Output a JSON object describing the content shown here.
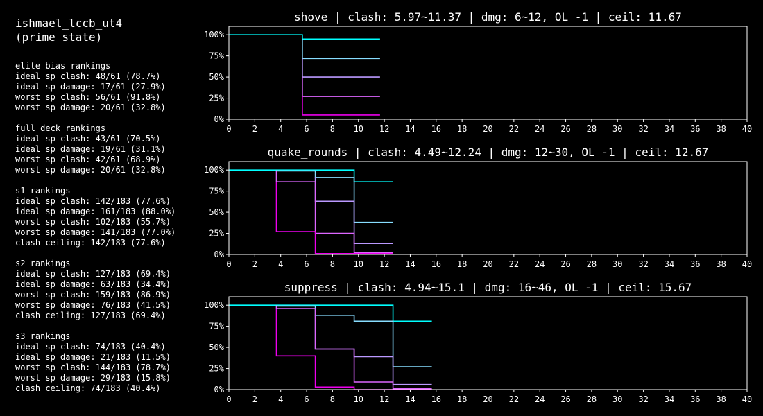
{
  "header": {
    "title_line1": "ishmael_lccb_ut4",
    "title_line2": "(prime state)"
  },
  "sections": [
    {
      "heading": "elite bias rankings",
      "lines": [
        "ideal sp clash: 48/61 (78.7%)",
        "ideal sp damage: 17/61 (27.9%)",
        "worst sp clash: 56/61 (91.8%)",
        "worst sp damage: 20/61 (32.8%)"
      ]
    },
    {
      "heading": "full deck rankings",
      "lines": [
        "ideal sp clash: 43/61 (70.5%)",
        "ideal sp damage: 19/61 (31.1%)",
        "worst sp clash: 42/61 (68.9%)",
        "worst sp damage: 20/61 (32.8%)"
      ]
    },
    {
      "heading": "s1 rankings",
      "lines": [
        "ideal sp clash: 142/183 (77.6%)",
        "ideal sp damage: 161/183 (88.0%)",
        "worst sp clash: 102/183 (55.7%)",
        "worst sp damage: 141/183 (77.0%)",
        "clash ceiling: 142/183 (77.6%)"
      ]
    },
    {
      "heading": "s2 rankings",
      "lines": [
        "ideal sp clash: 127/183 (69.4%)",
        "ideal sp damage: 63/183 (34.4%)",
        "worst sp clash: 159/183 (86.9%)",
        "worst sp damage: 76/183 (41.5%)",
        "clash ceiling: 127/183 (69.4%)"
      ]
    },
    {
      "heading": "s3 rankings",
      "lines": [
        "ideal sp clash: 74/183 (40.4%)",
        "ideal sp damage: 21/183 (11.5%)",
        "worst sp clash: 144/183 (78.7%)",
        "worst sp damage: 29/183 (15.8%)",
        "clash ceiling: 74/183 (40.4%)"
      ]
    }
  ],
  "colors": {
    "background": "#000000",
    "text": "#ffffff",
    "axis": "#ffffff",
    "series": [
      "#00ffff",
      "#88ddff",
      "#bb99ff",
      "#dd66ff",
      "#ee00ee"
    ]
  },
  "chart_data": [
    {
      "type": "line",
      "title": "shove | clash: 5.97~11.37 | dmg: 6~12, OL -1 | ceil: 11.67",
      "xlim": [
        0,
        40
      ],
      "ylim": [
        0,
        1.1
      ],
      "xticks": [
        0,
        2,
        4,
        6,
        8,
        10,
        12,
        14,
        16,
        18,
        20,
        22,
        24,
        26,
        28,
        30,
        32,
        34,
        36,
        38,
        40
      ],
      "yticks": [
        0,
        0.25,
        0.5,
        0.75,
        1.0
      ],
      "ytick_labels": [
        "0%",
        "25%",
        "50%",
        "75%",
        "100%"
      ],
      "series": [
        {
          "name": "s0",
          "x": [
            0,
            5.67,
            5.67,
            11.67
          ],
          "y": [
            1.0,
            1.0,
            0.95,
            0.95
          ]
        },
        {
          "name": "s1",
          "x": [
            5.67,
            5.67,
            11.67
          ],
          "y": [
            0.95,
            0.72,
            0.72
          ]
        },
        {
          "name": "s2",
          "x": [
            5.67,
            5.67,
            11.67
          ],
          "y": [
            0.72,
            0.5,
            0.5
          ]
        },
        {
          "name": "s3",
          "x": [
            5.67,
            5.67,
            11.67
          ],
          "y": [
            0.5,
            0.27,
            0.27
          ]
        },
        {
          "name": "s4",
          "x": [
            5.67,
            5.67,
            11.67
          ],
          "y": [
            0.27,
            0.05,
            0.05
          ]
        }
      ]
    },
    {
      "type": "line",
      "title": "quake_rounds | clash: 4.49~12.24 | dmg: 12~30, OL -1 | ceil: 12.67",
      "xlim": [
        0,
        40
      ],
      "ylim": [
        0,
        1.1
      ],
      "xticks": [
        0,
        2,
        4,
        6,
        8,
        10,
        12,
        14,
        16,
        18,
        20,
        22,
        24,
        26,
        28,
        30,
        32,
        34,
        36,
        38,
        40
      ],
      "yticks": [
        0,
        0.25,
        0.5,
        0.75,
        1.0
      ],
      "ytick_labels": [
        "0%",
        "25%",
        "50%",
        "75%",
        "100%"
      ],
      "series": [
        {
          "name": "s0",
          "x": [
            0,
            9.67,
            9.67,
            12.67
          ],
          "y": [
            1.0,
            1.0,
            0.86,
            0.86
          ]
        },
        {
          "name": "s1",
          "x": [
            3.67,
            3.67,
            6.67,
            6.67,
            9.67,
            9.67,
            12.67
          ],
          "y": [
            1.0,
            0.99,
            0.99,
            0.91,
            0.91,
            0.38,
            0.38
          ]
        },
        {
          "name": "s2",
          "x": [
            6.67,
            6.67,
            9.67,
            9.67,
            12.67
          ],
          "y": [
            0.91,
            0.63,
            0.63,
            0.13,
            0.13
          ]
        },
        {
          "name": "s3",
          "x": [
            3.67,
            3.67,
            6.67,
            6.67,
            9.67,
            9.67,
            12.67
          ],
          "y": [
            0.99,
            0.86,
            0.86,
            0.25,
            0.25,
            0.02,
            0.02
          ]
        },
        {
          "name": "s4",
          "x": [
            3.67,
            3.67,
            6.67,
            6.67,
            12.67
          ],
          "y": [
            0.86,
            0.27,
            0.27,
            0.01,
            0.01
          ]
        }
      ]
    },
    {
      "type": "line",
      "title": "suppress | clash: 4.94~15.1 | dmg: 16~46, OL -1 | ceil: 15.67",
      "xlim": [
        0,
        40
      ],
      "ylim": [
        0,
        1.1
      ],
      "xticks": [
        0,
        2,
        4,
        6,
        8,
        10,
        12,
        14,
        16,
        18,
        20,
        22,
        24,
        26,
        28,
        30,
        32,
        34,
        36,
        38,
        40
      ],
      "yticks": [
        0,
        0.25,
        0.5,
        0.75,
        1.0
      ],
      "ytick_labels": [
        "0%",
        "25%",
        "50%",
        "75%",
        "100%"
      ],
      "series": [
        {
          "name": "s0",
          "x": [
            0,
            12.67,
            12.67,
            15.67
          ],
          "y": [
            1.0,
            1.0,
            0.81,
            0.81
          ]
        },
        {
          "name": "s1",
          "x": [
            3.67,
            3.67,
            6.67,
            6.67,
            9.67,
            9.67,
            12.67,
            12.67,
            15.67
          ],
          "y": [
            1.0,
            0.99,
            0.99,
            0.88,
            0.88,
            0.81,
            0.81,
            0.27,
            0.27
          ]
        },
        {
          "name": "s2",
          "x": [
            6.67,
            6.67,
            9.67,
            9.67,
            12.67,
            12.67,
            15.67
          ],
          "y": [
            0.88,
            0.48,
            0.48,
            0.39,
            0.39,
            0.06,
            0.06
          ]
        },
        {
          "name": "s3",
          "x": [
            3.67,
            3.67,
            6.67,
            6.67,
            9.67,
            9.67,
            12.67,
            12.67,
            15.67
          ],
          "y": [
            0.99,
            0.96,
            0.96,
            0.48,
            0.48,
            0.09,
            0.09,
            0.01,
            0.01
          ]
        },
        {
          "name": "s4",
          "x": [
            3.67,
            3.67,
            6.67,
            6.67,
            9.67,
            9.67,
            15.67
          ],
          "y": [
            0.96,
            0.4,
            0.4,
            0.03,
            0.03,
            0.0,
            0.0
          ]
        }
      ]
    }
  ]
}
